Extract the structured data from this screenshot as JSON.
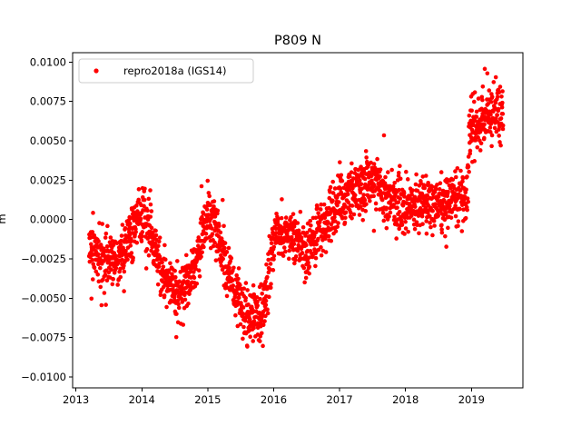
{
  "chart_data": {
    "type": "scatter",
    "title": "P809 N",
    "xlabel": "",
    "ylabel": "m",
    "xlim": [
      2012.95,
      2019.78
    ],
    "ylim": [
      -0.0107,
      0.0106
    ],
    "x_ticks": [
      2013,
      2014,
      2015,
      2016,
      2017,
      2018,
      2019
    ],
    "x_tick_labels": [
      "2013",
      "2014",
      "2015",
      "2016",
      "2017",
      "2018",
      "2019"
    ],
    "y_ticks": [
      0.01,
      0.0075,
      0.005,
      0.0025,
      0.0,
      -0.0025,
      -0.005,
      -0.0075,
      -0.01
    ],
    "y_tick_labels": [
      "0.0100",
      "0.0075",
      "0.0050",
      "0.0025",
      "0.0000",
      "−0.0025",
      "−0.0050",
      "−0.0075",
      "−0.0100"
    ],
    "grid": false,
    "legend": {
      "placement": "upper-left"
    },
    "series": [
      {
        "name": "repro2018a (IGS14)",
        "color": "#ff0000",
        "marker": "circle",
        "x_range": [
          2013.2,
          2019.48
        ],
        "trend": [
          {
            "x": 2013.2,
            "y": -0.0015
          },
          {
            "x": 2013.45,
            "y": -0.0028
          },
          {
            "x": 2013.7,
            "y": -0.0022
          },
          {
            "x": 2013.95,
            "y": 0.0003
          },
          {
            "x": 2014.1,
            "y": -0.0005
          },
          {
            "x": 2014.3,
            "y": -0.0033
          },
          {
            "x": 2014.55,
            "y": -0.0048
          },
          {
            "x": 2014.8,
            "y": -0.0032
          },
          {
            "x": 2015.0,
            "y": 0.0004
          },
          {
            "x": 2015.15,
            "y": -0.0008
          },
          {
            "x": 2015.4,
            "y": -0.0045
          },
          {
            "x": 2015.6,
            "y": -0.0062
          },
          {
            "x": 2015.85,
            "y": -0.0058
          },
          {
            "x": 2016.0,
            "y": -0.0012
          },
          {
            "x": 2016.25,
            "y": -0.0008
          },
          {
            "x": 2016.5,
            "y": -0.0022
          },
          {
            "x": 2016.75,
            "y": -0.0005
          },
          {
            "x": 2017.0,
            "y": 0.0012
          },
          {
            "x": 2017.25,
            "y": 0.0018
          },
          {
            "x": 2017.5,
            "y": 0.0026
          },
          {
            "x": 2017.75,
            "y": 0.0013
          },
          {
            "x": 2018.0,
            "y": 0.0006
          },
          {
            "x": 2018.25,
            "y": 0.0012
          },
          {
            "x": 2018.5,
            "y": 0.0007
          },
          {
            "x": 2018.75,
            "y": 0.0015
          },
          {
            "x": 2018.93,
            "y": 0.0012
          },
          {
            "x": 2018.98,
            "y": 0.0058
          },
          {
            "x": 2019.25,
            "y": 0.0065
          },
          {
            "x": 2019.48,
            "y": 0.007
          }
        ],
        "scatter_sd": 0.0009,
        "approx_point_count": 2100
      }
    ]
  }
}
